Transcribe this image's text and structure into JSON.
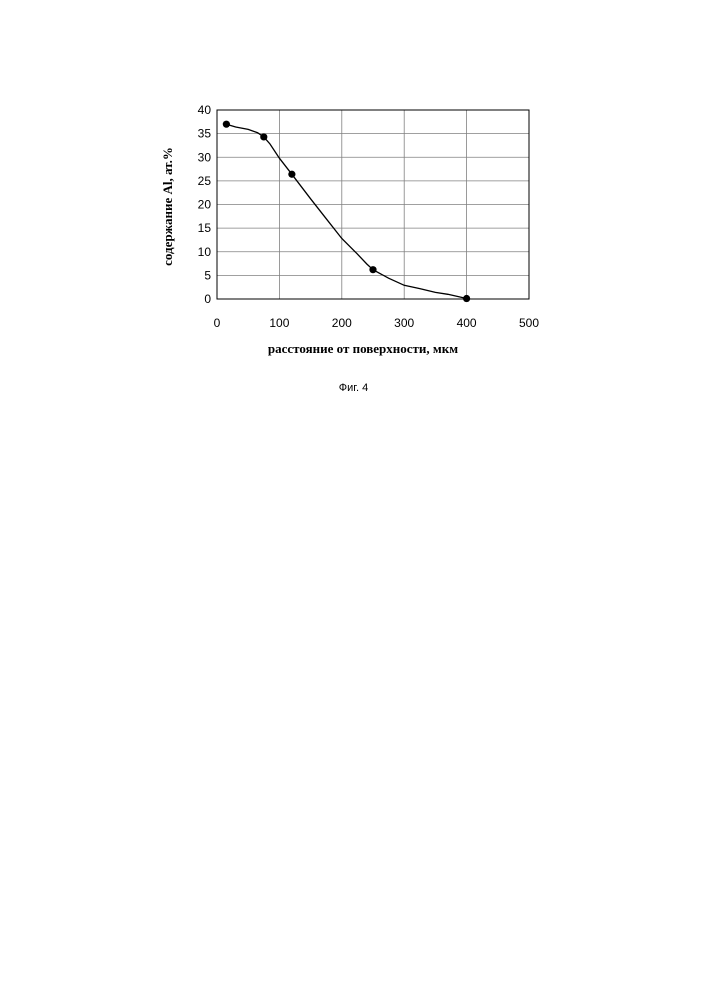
{
  "chart_data": {
    "type": "line",
    "title": "",
    "xlabel": "расстояние от поверхности, мкм",
    "ylabel": "содержание Al, ат.%",
    "xlim": [
      0,
      500
    ],
    "ylim": [
      0,
      40
    ],
    "x_ticks": [
      "0",
      "100",
      "200",
      "300",
      "400",
      "500"
    ],
    "y_ticks": [
      "0",
      "5",
      "10",
      "15",
      "20",
      "25",
      "30",
      "35",
      "40"
    ],
    "grid": true,
    "legend": "none",
    "series": [
      {
        "points": [
          {
            "x": 15,
            "y": 37.0
          },
          {
            "x": 75,
            "y": 34.3
          },
          {
            "x": 120,
            "y": 26.4
          },
          {
            "x": 250,
            "y": 6.2
          },
          {
            "x": 400,
            "y": 0.1
          }
        ],
        "curve": [
          [
            15,
            37.0
          ],
          [
            30,
            36.4
          ],
          [
            50,
            35.9
          ],
          [
            65,
            35.2
          ],
          [
            75,
            34.3
          ],
          [
            85,
            32.8
          ],
          [
            100,
            29.8
          ],
          [
            120,
            26.4
          ],
          [
            150,
            21.2
          ],
          [
            175,
            17.0
          ],
          [
            200,
            12.8
          ],
          [
            225,
            9.5
          ],
          [
            240,
            7.4
          ],
          [
            250,
            6.2
          ],
          [
            275,
            4.4
          ],
          [
            300,
            2.9
          ],
          [
            325,
            2.2
          ],
          [
            350,
            1.4
          ],
          [
            370,
            1.0
          ],
          [
            400,
            0.1
          ]
        ]
      }
    ]
  },
  "caption": "Фиг. 4"
}
